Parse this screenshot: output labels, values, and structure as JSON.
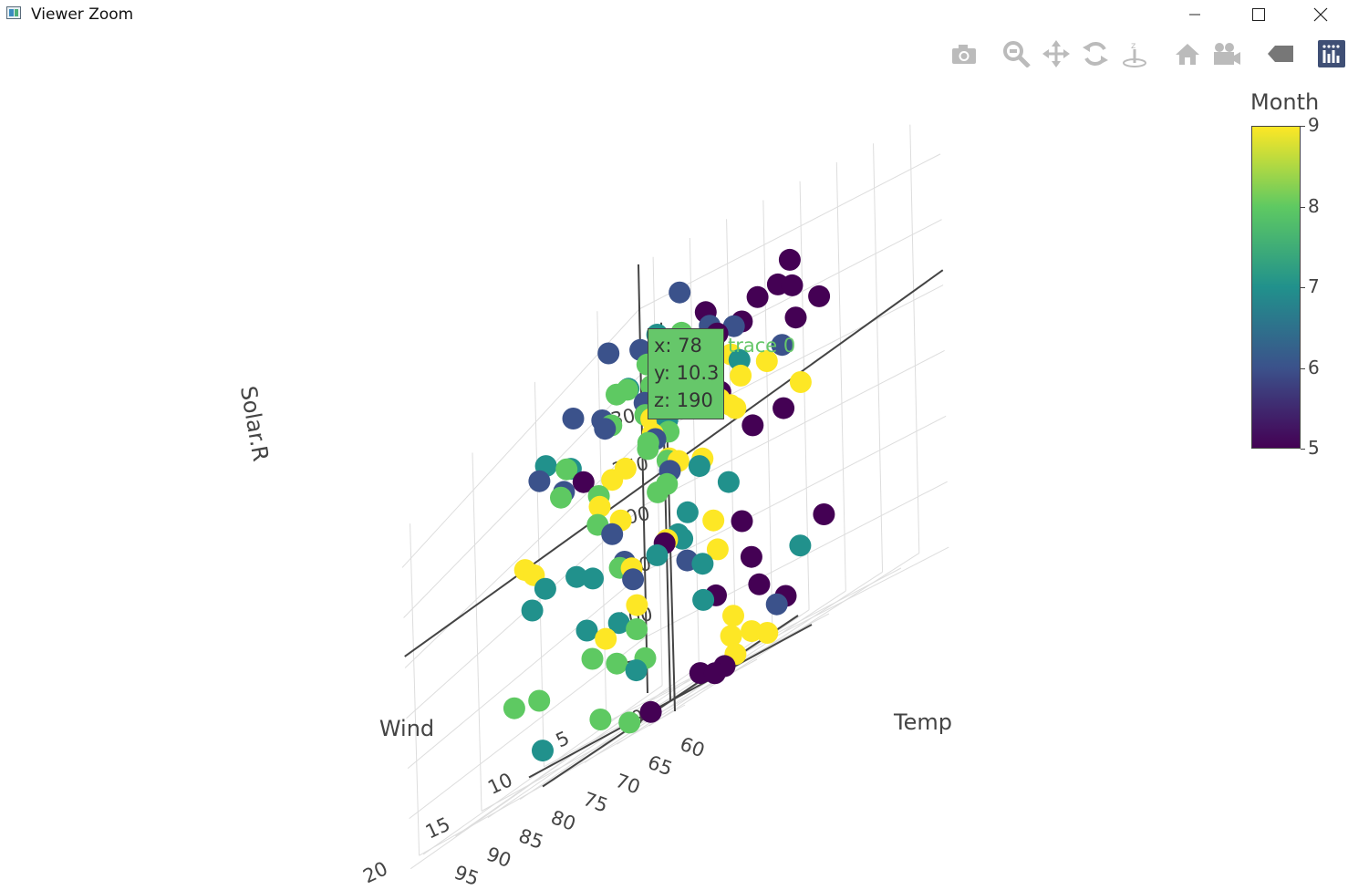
{
  "window": {
    "title": "Viewer Zoom"
  },
  "modebar": {
    "icons": [
      "camera-icon",
      "zoom-icon",
      "pan-icon",
      "orbit-icon",
      "turntable-icon",
      "home-icon",
      "camera-reset-icon",
      "hover-icon",
      "plotly-logo-icon"
    ]
  },
  "colors": {
    "axis": "#444444",
    "grid": "#dddddd",
    "tooltip_bg": "#66c76a",
    "viridis": [
      "#440154",
      "#3b528b",
      "#21918c",
      "#5ec962",
      "#fde725"
    ]
  },
  "tooltip": {
    "x": "x: 78",
    "y": "y: 10.3",
    "z": "z: 190",
    "trace": "trace 0"
  },
  "chart_data": {
    "type": "scatter3d",
    "x_axis": {
      "label": "Temp",
      "range": [
        56,
        97
      ],
      "ticks": [
        60,
        65,
        70,
        75,
        80,
        85,
        90,
        95
      ]
    },
    "y_axis": {
      "label": "Wind",
      "range": [
        1.7,
        20.7
      ],
      "ticks": [
        5,
        10,
        15,
        20
      ]
    },
    "z_axis": {
      "label": "Solar.R",
      "range": [
        7,
        334
      ],
      "ticks": [
        0,
        50,
        100,
        150,
        200,
        250,
        300
      ]
    },
    "colorbar": {
      "title": "Month",
      "range": [
        5,
        9
      ],
      "ticks": [
        5,
        6,
        7,
        8,
        9
      ],
      "colorscale": "Viridis"
    },
    "points": [
      [
        67,
        7.4,
        190,
        5
      ],
      [
        72,
        8,
        118,
        5
      ],
      [
        74,
        12.6,
        149,
        5
      ],
      [
        62,
        11.5,
        313,
        5
      ],
      [
        65,
        8.6,
        299,
        5
      ],
      [
        59,
        13.8,
        99,
        5
      ],
      [
        61,
        20.1,
        19,
        5
      ],
      [
        69,
        8.6,
        194,
        5
      ],
      [
        66,
        6.9,
        256,
        5
      ],
      [
        68,
        9.7,
        290,
        5
      ],
      [
        58,
        9.2,
        274,
        5
      ],
      [
        64,
        10.9,
        65,
        5
      ],
      [
        66,
        13.2,
        334,
        5
      ],
      [
        57,
        11.5,
        307,
        5
      ],
      [
        68,
        12,
        78,
        5
      ],
      [
        62,
        18.4,
        322,
        5
      ],
      [
        59,
        11.5,
        44,
        5
      ],
      [
        73,
        9.7,
        8,
        5
      ],
      [
        61,
        9.7,
        320,
        5
      ],
      [
        61,
        16.6,
        25,
        5
      ],
      [
        57,
        9.7,
        92,
        5
      ],
      [
        67,
        12,
        13,
        5
      ],
      [
        81,
        14.9,
        252,
        5
      ],
      [
        79,
        5.7,
        223,
        5
      ],
      [
        76,
        7.4,
        279,
        5
      ],
      [
        78,
        6.9,
        286,
        6
      ],
      [
        74,
        13.8,
        287,
        6
      ],
      [
        67,
        7.4,
        242,
        6
      ],
      [
        84,
        6.9,
        186,
        6
      ],
      [
        85,
        7.4,
        220,
        6
      ],
      [
        79,
        4.6,
        264,
        6
      ],
      [
        82,
        10.9,
        127,
        6
      ],
      [
        87,
        10.3,
        273,
        6
      ],
      [
        90,
        10.9,
        291,
        6
      ],
      [
        87,
        9.7,
        323,
        6
      ],
      [
        93,
        12,
        259,
        6
      ],
      [
        92,
        7.4,
        250,
        6
      ],
      [
        82,
        11.5,
        148,
        6
      ],
      [
        80,
        8,
        332,
        6
      ],
      [
        79,
        11.5,
        322,
        6
      ],
      [
        77,
        14.9,
        191,
        6
      ],
      [
        72,
        20.7,
        284,
        6
      ],
      [
        65,
        9.2,
        37,
        6
      ],
      [
        73,
        11.5,
        120,
        6
      ],
      [
        76,
        10.3,
        137,
        7
      ],
      [
        77,
        6.3,
        150,
        7
      ],
      [
        76,
        1.7,
        59,
        7
      ],
      [
        84,
        4.6,
        91,
        7
      ],
      [
        85,
        6.3,
        250,
        7
      ],
      [
        81,
        8,
        135,
        7
      ],
      [
        84,
        8,
        127,
        7
      ],
      [
        83,
        10.3,
        47,
        7
      ],
      [
        83,
        11.5,
        98,
        7
      ],
      [
        88,
        14.9,
        31,
        7
      ],
      [
        92,
        8.6,
        138,
        7
      ],
      [
        92,
        12,
        269,
        7
      ],
      [
        89,
        14.9,
        162,
        7
      ],
      [
        82,
        5.7,
        65,
        7
      ],
      [
        73,
        7.4,
        248,
        7
      ],
      [
        81,
        8.6,
        236,
        7
      ],
      [
        91,
        9.7,
        101,
        7
      ],
      [
        80,
        16.1,
        175,
        7
      ],
      [
        81,
        9.2,
        314,
        7
      ],
      [
        82,
        8.6,
        276,
        7
      ],
      [
        84,
        14.3,
        267,
        7
      ],
      [
        87,
        14.9,
        175,
        7
      ],
      [
        85,
        5.1,
        139,
        7
      ],
      [
        74,
        10.3,
        264,
        7
      ],
      [
        81,
        6.3,
        175,
        7
      ],
      [
        82,
        10.9,
        291,
        7
      ],
      [
        86,
        8,
        48,
        8
      ],
      [
        85,
        4.1,
        260,
        8
      ],
      [
        82,
        9.2,
        274,
        8
      ],
      [
        86,
        9.7,
        285,
        8
      ],
      [
        88,
        10.3,
        187,
        8
      ],
      [
        86,
        7.4,
        220,
        8
      ],
      [
        83,
        10.9,
        7,
        8
      ],
      [
        81,
        16.6,
        258,
        8
      ],
      [
        81,
        7.4,
        295,
        8
      ],
      [
        81,
        11.5,
        294,
        8
      ],
      [
        82,
        8,
        223,
        8
      ],
      [
        86,
        12,
        81,
        8
      ],
      [
        85,
        16.6,
        82,
        8
      ],
      [
        87,
        6.9,
        213,
        8
      ],
      [
        89,
        5.7,
        275,
        8
      ],
      [
        90,
        8,
        253,
        8
      ],
      [
        90,
        11.5,
        254,
        8
      ],
      [
        92,
        14.9,
        83,
        8
      ],
      [
        86,
        11.5,
        24,
        8
      ],
      [
        86,
        8.6,
        77,
        8
      ],
      [
        82,
        9.7,
        255,
        8
      ],
      [
        80,
        14.3,
        229,
        8
      ],
      [
        79,
        9.7,
        207,
        8
      ],
      [
        77,
        11.5,
        192,
        8
      ],
      [
        79,
        7.4,
        273,
        8
      ],
      [
        76,
        14.9,
        157,
        8
      ],
      [
        78,
        14.3,
        71,
        8
      ],
      [
        78,
        10.3,
        190,
        8
      ],
      [
        91,
        6.9,
        167,
        9
      ],
      [
        92,
        13.8,
        197,
        9
      ],
      [
        93,
        12.6,
        183,
        9
      ],
      [
        93,
        7.4,
        189,
        9
      ],
      [
        87,
        8,
        95,
        9
      ],
      [
        84,
        12,
        92,
        9
      ],
      [
        80,
        10.3,
        252,
        9
      ],
      [
        78,
        6.3,
        220,
        9
      ],
      [
        75,
        6.3,
        230,
        9
      ],
      [
        73,
        8,
        259,
        9
      ],
      [
        81,
        9.7,
        236,
        9
      ],
      [
        76,
        11.5,
        259,
        9
      ],
      [
        77,
        13.8,
        238,
        9
      ],
      [
        71,
        8,
        24,
        9
      ],
      [
        71,
        10.3,
        112,
        9
      ],
      [
        78,
        14.3,
        237,
        9
      ],
      [
        67,
        14.9,
        224,
        9
      ],
      [
        76,
        6.9,
        27,
        9
      ],
      [
        68,
        8,
        238,
        9
      ],
      [
        82,
        8,
        201,
        9
      ],
      [
        64,
        12.6,
        238,
        9
      ],
      [
        71,
        9.2,
        14,
        9
      ],
      [
        81,
        11.5,
        139,
        9
      ],
      [
        69,
        10.3,
        49,
        9
      ],
      [
        63,
        10.9,
        20,
        9
      ],
      [
        70,
        4.6,
        193,
        9
      ],
      [
        77,
        10.9,
        145,
        9
      ],
      [
        75,
        9.2,
        191,
        9
      ],
      [
        76,
        8,
        131,
        9
      ],
      [
        68,
        10.3,
        223,
        9
      ]
    ]
  }
}
